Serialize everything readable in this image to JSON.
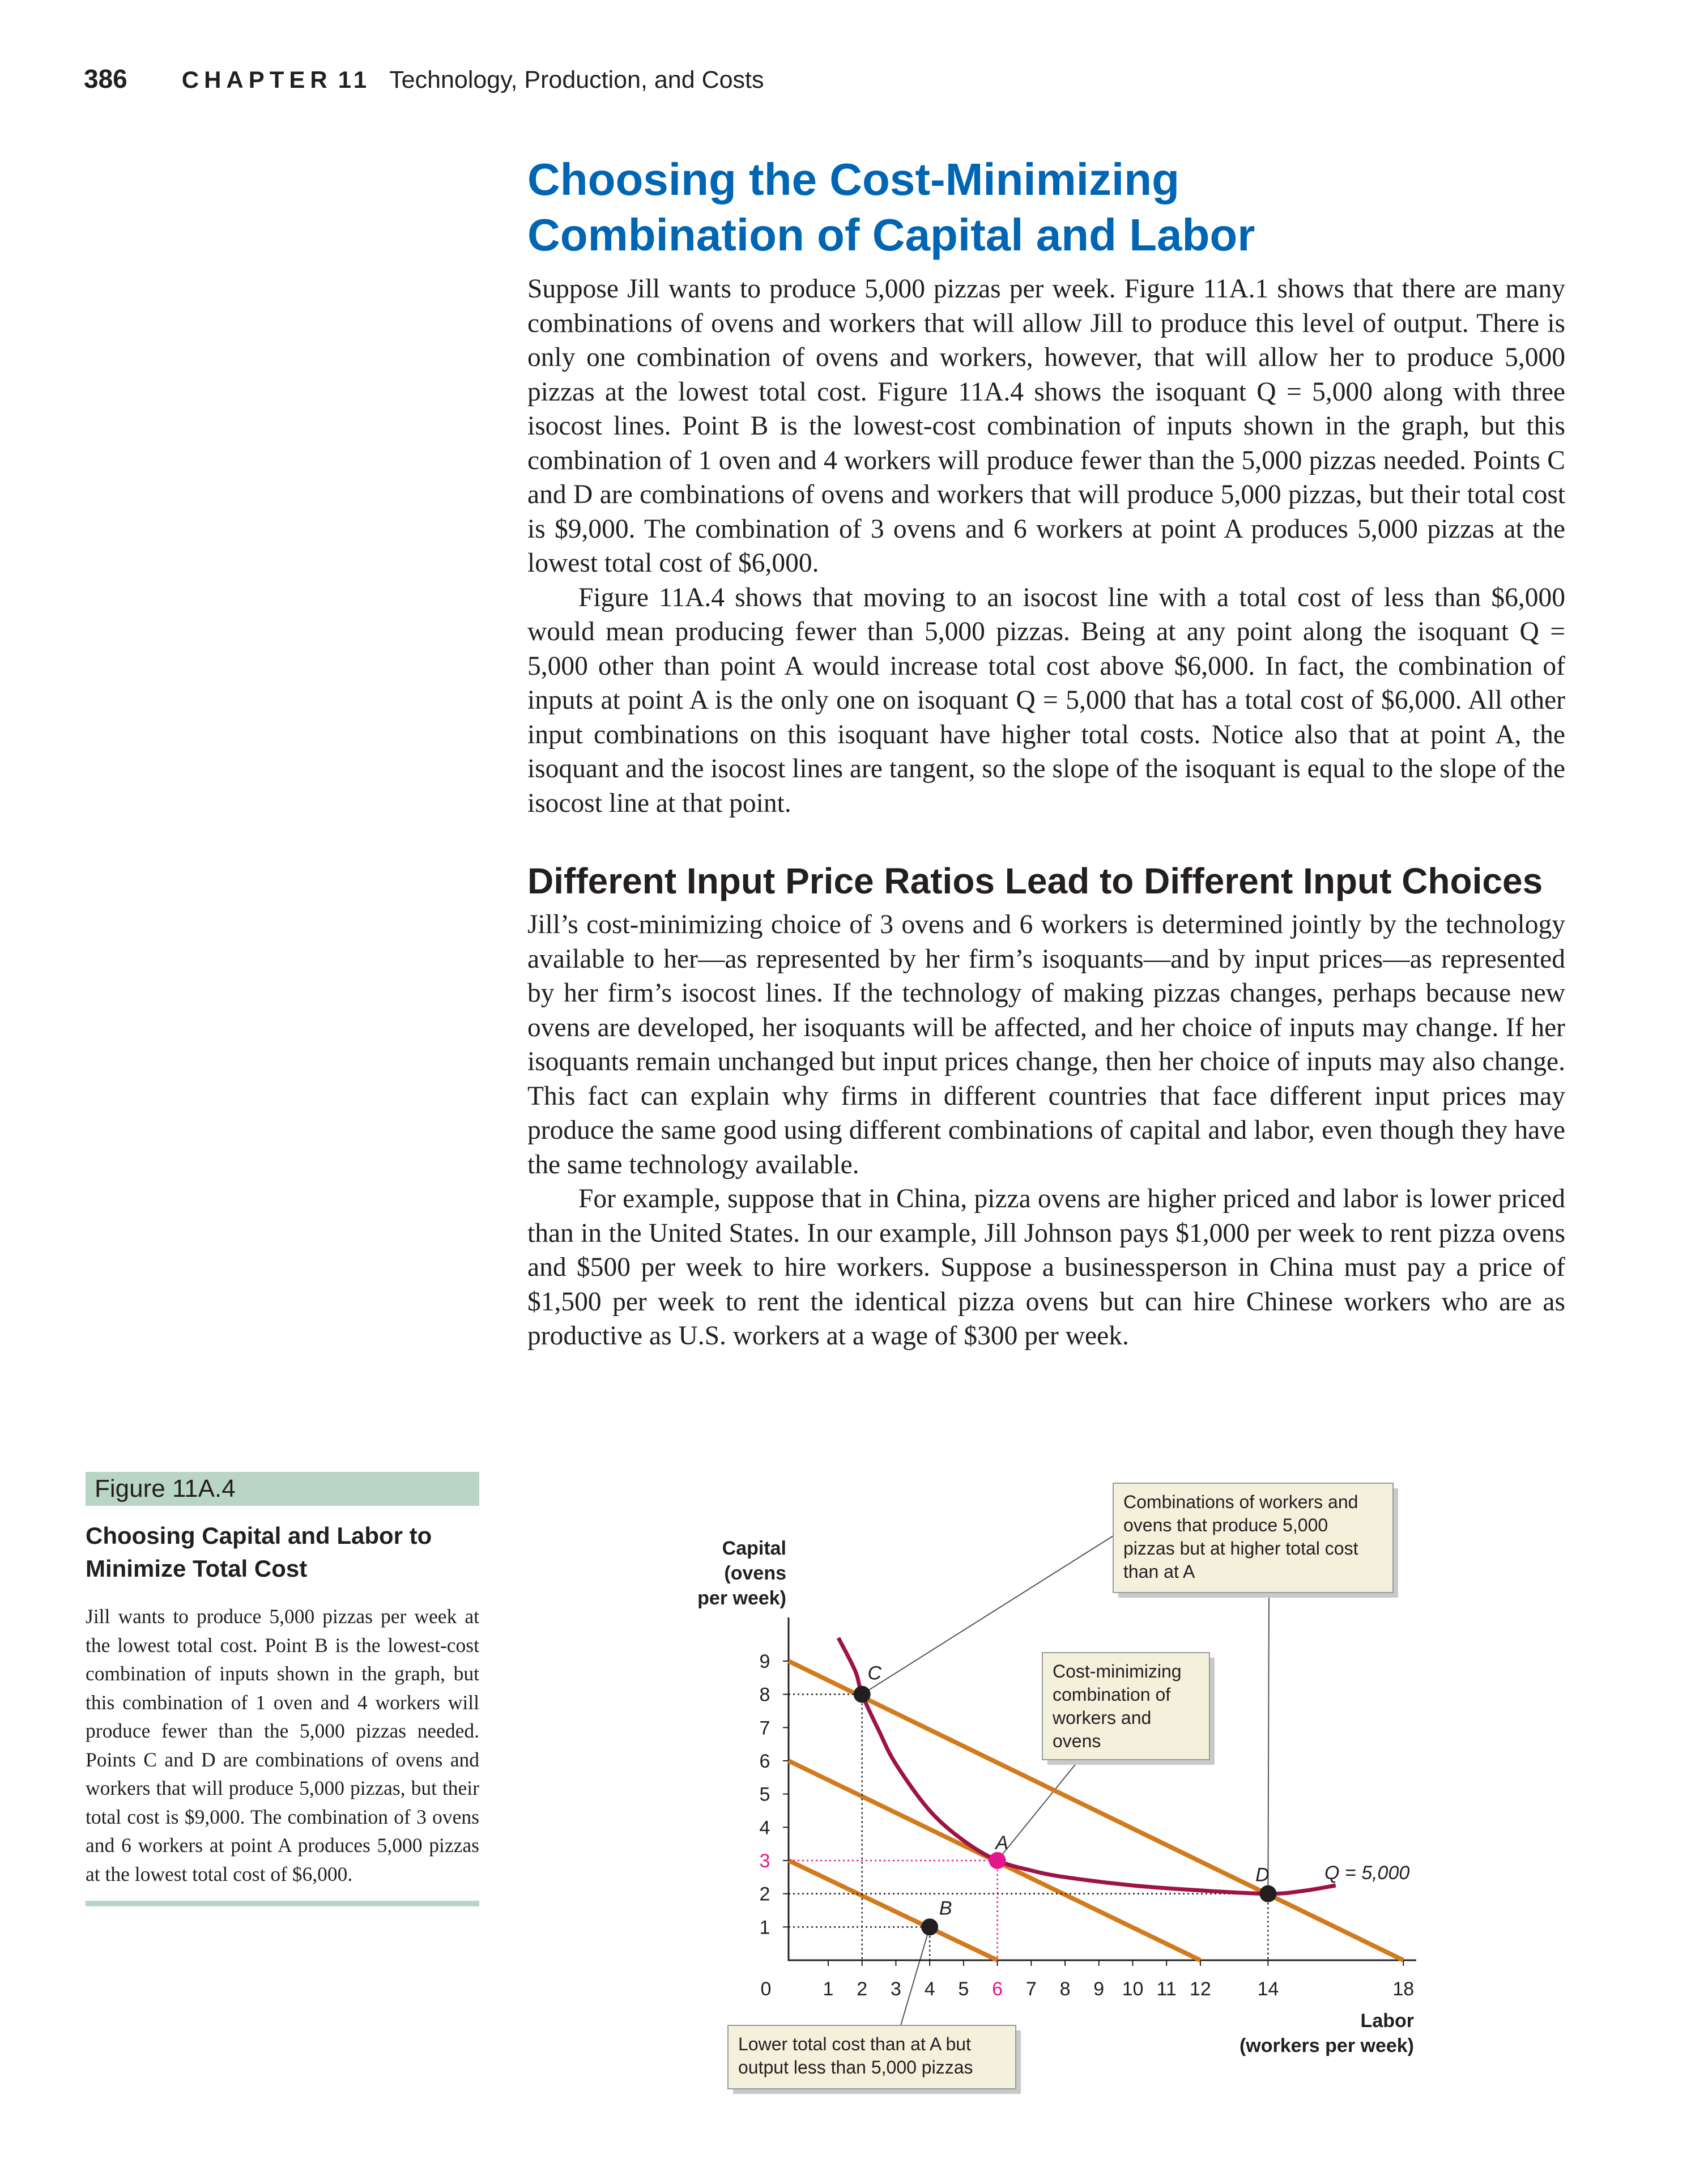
{
  "header": {
    "page_number": "386",
    "chapter_label": "CHAPTER",
    "chapter_number": "11",
    "chapter_title": "Technology, Production, and Costs"
  },
  "section": {
    "title_line1": "Choosing the Cost-Minimizing",
    "title_line2": "Combination of Capital and Labor",
    "paragraphs": [
      "Suppose Jill wants to produce 5,000 pizzas per week. Figure 11A.1 shows that there are many combinations of ovens and workers that will allow Jill to produce this level of output. There is only one combination of ovens and workers, however, that will allow her to produce 5,000 pizzas at the lowest total cost. Figure 11A.4 shows the isoquant Q = 5,000 along with three isocost lines. Point B is the lowest-cost combination of inputs shown in the graph, but this combination of 1 oven and 4 workers will produce fewer than the 5,000 pizzas needed. Points C and D are combinations of ovens and workers that will produce 5,000 pizzas, but their total cost is $9,000. The combination of 3 ovens and 6 workers at point A produces 5,000 pizzas at the lowest total cost of $6,000.",
      "Figure 11A.4 shows that moving to an isocost line with a total cost of less than $6,000 would mean producing fewer than 5,000 pizzas. Being at any point along the isoquant Q = 5,000 other than point A would increase total cost above $6,000. In fact, the combination of inputs at point A is the only one on isoquant Q = 5,000 that has a total cost of $6,000. All other input combinations on this isoquant have higher total costs. Notice also that at point A, the isoquant and the isocost lines are tangent, so the slope of the isoquant is equal to the slope of the isocost line at that point."
    ]
  },
  "subsection": {
    "title": "Different Input Price Ratios Lead to Different Input Choices",
    "paragraphs": [
      "Jill’s cost-minimizing choice of 3 ovens and 6 workers is determined jointly by the technology available to her—as represented by her firm’s isoquants—and by input prices—as represented by her firm’s isocost lines. If the technology of making pizzas changes, perhaps because new ovens are developed, her isoquants will be affected, and her choice of inputs may change. If her isoquants remain unchanged but input prices change, then her choice of inputs may also change. This fact can explain why firms in different countries that face different input prices may produce the same good using different combinations of capital and labor, even though they have the same technology available.",
      "For example, suppose that in China, pizza ovens are higher priced and labor is lower priced than in the United States. In our example, Jill Johnson pays $1,000 per week to rent pizza ovens and $500 per week to hire workers. Suppose a businessperson in China must pay a price of $1,500 per week to rent the identical pizza ovens but can hire Chinese workers who are as productive as U.S. workers at a wage of $300 per week."
    ]
  },
  "figure": {
    "tab": "Figure 11A.4",
    "title_line1": "Choosing Capital and Labor to",
    "title_line2": "Minimize Total Cost",
    "caption": "Jill wants to produce 5,000 pizzas per week at the lowest total cost. Point B is the lowest-cost combination of inputs shown in the graph, but this combination of 1 oven and 4 workers will produce fewer than the 5,000 pizzas needed. Points C and D are combinations of ovens and workers that will produce 5,000 pizzas, but their total cost is $9,000. The combination of 3 ovens and 6 workers at point A produces 5,000 pizzas at the lowest total cost of $6,000."
  },
  "chart_data": {
    "type": "line",
    "ylabel_lines": [
      "Capital",
      "(ovens",
      "per week)"
    ],
    "xlabel_lines": [
      "Labor",
      "(workers per week)"
    ],
    "x_ticks": [
      0,
      1,
      2,
      3,
      4,
      5,
      6,
      7,
      8,
      9,
      10,
      11,
      12,
      14,
      18
    ],
    "y_ticks": [
      1,
      2,
      3,
      4,
      5,
      6,
      7,
      8,
      9
    ],
    "xlim": [
      0,
      18
    ],
    "ylim": [
      0,
      9.5
    ],
    "isocost_lines": [
      {
        "total_cost": 3000,
        "y_intercept": 3,
        "x_intercept": 6
      },
      {
        "total_cost": 6000,
        "y_intercept": 6,
        "x_intercept": 12
      },
      {
        "total_cost": 9000,
        "y_intercept": 9,
        "x_intercept": 18
      }
    ],
    "isoquant": {
      "label": "Q = 5,000",
      "points": [
        [
          1.3,
          9.7
        ],
        [
          1.8,
          8.7
        ],
        [
          2,
          8
        ],
        [
          2.5,
          6.9
        ],
        [
          3,
          5.9
        ],
        [
          4,
          4.5
        ],
        [
          5,
          3.6
        ],
        [
          6,
          3
        ],
        [
          7,
          2.7
        ],
        [
          8,
          2.5
        ],
        [
          10,
          2.25
        ],
        [
          12,
          2.1
        ],
        [
          14,
          2
        ],
        [
          15,
          2.08
        ],
        [
          16,
          2.25
        ]
      ]
    },
    "points": [
      {
        "label": "A",
        "x": 6,
        "y": 3,
        "highlight": true
      },
      {
        "label": "B",
        "x": 4,
        "y": 1
      },
      {
        "label": "C",
        "x": 2,
        "y": 8
      },
      {
        "label": "D",
        "x": 14,
        "y": 2
      }
    ],
    "highlight_ticks": {
      "x": "6",
      "y": "3"
    },
    "annotations": [
      {
        "target": "C,D",
        "lines": [
          "Combinations of workers and",
          "ovens that produce 5,000",
          "pizzas but at higher total cost",
          "than at A"
        ]
      },
      {
        "target": "A",
        "lines": [
          "Cost-minimizing",
          "combination of",
          "workers and",
          "ovens"
        ]
      },
      {
        "target": "B",
        "lines": [
          "Lower total cost than at A but",
          "output less than 5,000 pizzas"
        ]
      }
    ],
    "colors": {
      "isocost": "#d27a1e",
      "isoquant": "#9e1246",
      "highlight": "#e5168c",
      "callout_bg": "#f3f0db",
      "callout_shadow": "#c9c9c9"
    }
  }
}
